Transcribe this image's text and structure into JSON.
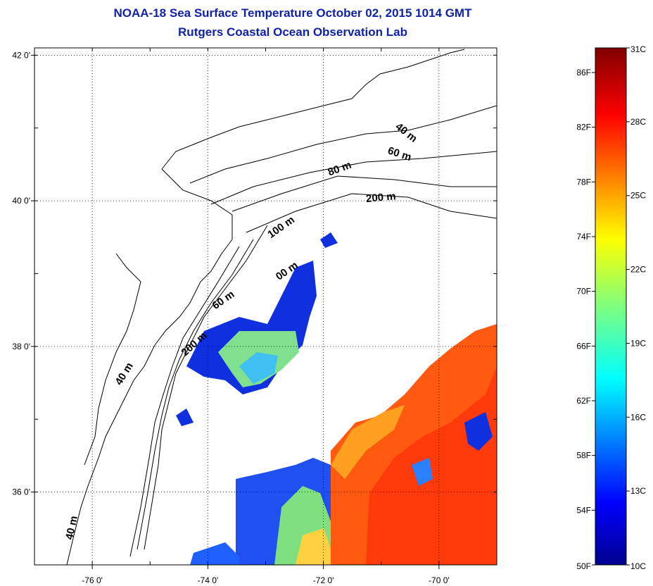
{
  "header": {
    "title": "NOAA-18 Sea Surface Temperature October 02, 2015 1014 GMT",
    "subtitle": "Rutgers Coastal Ocean Observation Lab"
  },
  "map": {
    "lat_ticks": [
      {
        "value": 42,
        "label": "42 0'"
      },
      {
        "value": 40,
        "label": "40 0'"
      },
      {
        "value": 38,
        "label": "38 0'"
      },
      {
        "value": 36,
        "label": "36 0'"
      }
    ],
    "lon_ticks": [
      {
        "value": -76,
        "label": "-76 0'"
      },
      {
        "value": -74,
        "label": "-74 0'"
      },
      {
        "value": -72,
        "label": "-72 0'"
      },
      {
        "value": -70,
        "label": "-70 0'"
      }
    ],
    "lat_range": [
      35,
      42.1
    ],
    "lon_range": [
      -77,
      -69
    ],
    "grid": "dotted",
    "isobath_labels": [
      {
        "text": "40 m",
        "lon": -70.6,
        "lat": 40.9,
        "angle": 38
      },
      {
        "text": "60 m",
        "lon": -70.7,
        "lat": 40.6,
        "angle": 18
      },
      {
        "text": "80 m",
        "lon": -71.7,
        "lat": 40.4,
        "angle": -20
      },
      {
        "text": "200 m",
        "lon": -71.0,
        "lat": 40.0,
        "angle": -5
      },
      {
        "text": "100 m",
        "lon": -72.7,
        "lat": 39.6,
        "angle": -35
      },
      {
        "text": "60 m",
        "lon": -73.7,
        "lat": 38.6,
        "angle": -35
      },
      {
        "text": "200 m",
        "lon": -74.2,
        "lat": 38.0,
        "angle": -42
      },
      {
        "text": "40 m",
        "lon": -75.4,
        "lat": 37.6,
        "angle": -58
      },
      {
        "text": "40 m",
        "lon": -76.3,
        "lat": 35.5,
        "angle": -78
      },
      {
        "text": "00 m",
        "lon": -72.6,
        "lat": 39.0,
        "angle": -35
      }
    ]
  },
  "colorbar": {
    "fahrenheit_labels": [
      "86F",
      "82F",
      "78F",
      "74F",
      "70F",
      "66F",
      "62F",
      "58F",
      "54F",
      "50F"
    ],
    "celsius_labels": [
      "31C",
      "28C",
      "25C",
      "22C",
      "19C",
      "16C",
      "13C",
      "10C"
    ],
    "range_c": [
      10,
      31
    ],
    "colormap": "jet"
  },
  "colors": {
    "title": "#1022a8",
    "coast": "#000000",
    "grid": "#000000"
  }
}
